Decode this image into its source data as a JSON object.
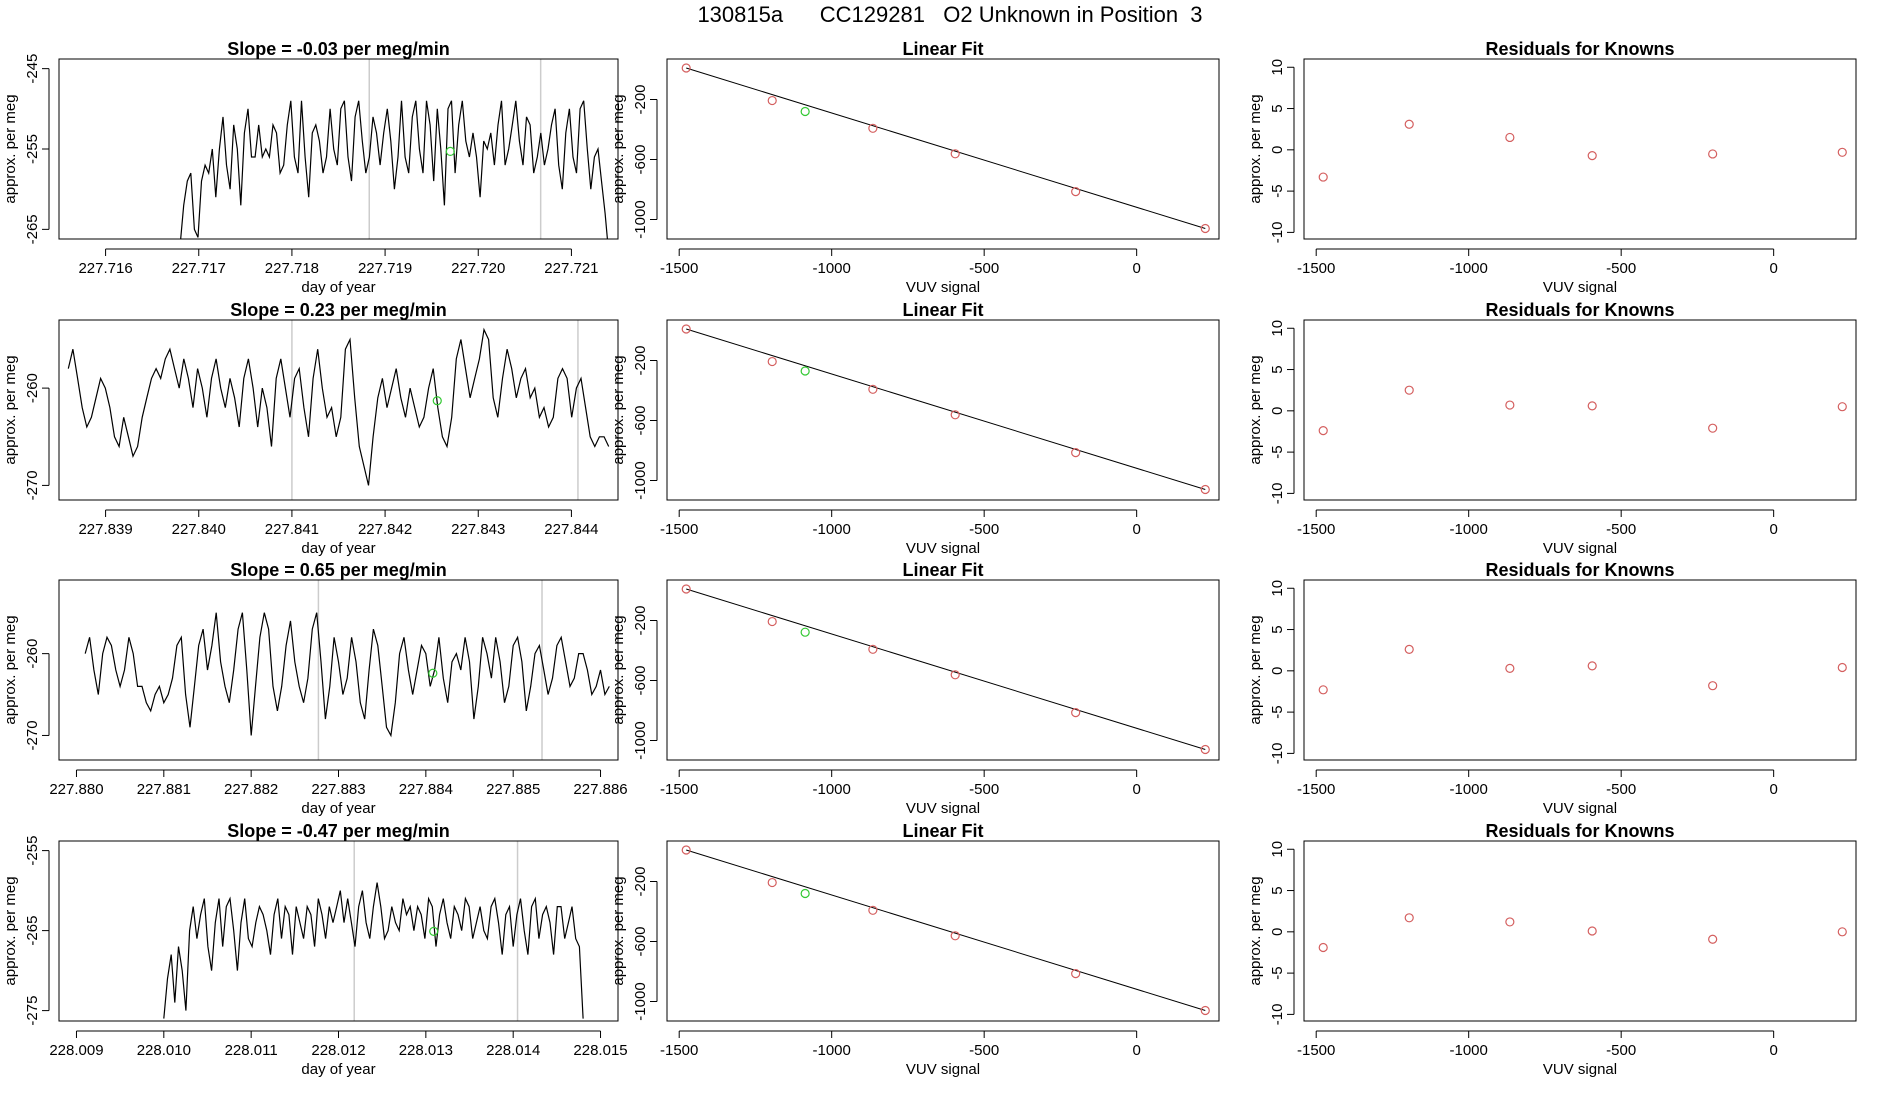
{
  "page_title": "130815a      CC129281   O2 Unknown in Position  3",
  "colors": {
    "axis": "#000000",
    "series": "#000000",
    "fit_line": "#000000",
    "known_points": "#d45f5f",
    "unknown_point": "#32c832",
    "marker_lines": "#cccccc"
  },
  "chart_data": [
    {
      "id": "r1-timeseries",
      "type": "line",
      "title": "Slope =  -0.03  per meg/min",
      "xlabel": "day of year",
      "ylabel": "approx. per meg",
      "xlim": [
        227.7155,
        227.7215
      ],
      "ylim": [
        -266.2,
        -243.8
      ],
      "xticks": [
        227.716,
        227.717,
        227.718,
        227.719,
        227.72,
        227.721
      ],
      "xtick_labels": [
        "227.716",
        "227.717",
        "227.718",
        "227.719",
        "227.720",
        "227.721"
      ],
      "yticks": [
        -245,
        -255,
        -265
      ],
      "ytick_labels": [
        "-245",
        "-255",
        "-265"
      ],
      "marker_lines_x": [
        227.71883,
        227.72067
      ],
      "series": {
        "x_start": 227.7168,
        "x_end": 227.7214,
        "y": [
          -267,
          -262,
          -259,
          -258,
          -265,
          -266,
          -259,
          -257,
          -258,
          -255,
          -261,
          -255,
          -251,
          -257,
          -260,
          -252,
          -255,
          -262,
          -253,
          -250,
          -256,
          -256,
          -252,
          -256,
          -255,
          -256,
          -252,
          -253,
          -258,
          -257,
          -252,
          -249,
          -256,
          -258,
          -249,
          -256,
          -261,
          -253,
          -252,
          -254,
          -258,
          -256,
          -250,
          -255,
          -257,
          -250,
          -249,
          -256,
          -259,
          -251,
          -249,
          -254,
          -258,
          -256,
          -251,
          -253,
          -257,
          -253,
          -250,
          -254,
          -260,
          -256,
          -249,
          -256,
          -258,
          -251,
          -249,
          -255,
          -258,
          -249,
          -252,
          -259,
          -250,
          -255,
          -262,
          -250,
          -249,
          -258,
          -252,
          -249,
          -254,
          -256,
          -253,
          -256,
          -261,
          -254,
          -255,
          -253,
          -257,
          -252,
          -249,
          -257,
          -255,
          -252,
          -249,
          -254,
          -257,
          -251,
          -252,
          -258,
          -256,
          -253,
          -257,
          -255,
          -252,
          -250,
          -257,
          -260,
          -253,
          -250,
          -256,
          -258,
          -250,
          -249,
          -255,
          -260,
          -256,
          -255,
          -259,
          -263,
          -268
        ]
      },
      "unknown_point": {
        "x": 227.7197,
        "y": -255.3
      }
    },
    {
      "id": "r1-fit",
      "type": "scatter",
      "title": "Linear Fit",
      "xlabel": "VUV signal",
      "ylabel": "approx. per meg",
      "xlim": [
        -1540,
        270
      ],
      "ylim": [
        -1130,
        70
      ],
      "xticks": [
        -1500,
        -1000,
        -500,
        0
      ],
      "xtick_labels": [
        "-1500",
        "-1000",
        "-500",
        "0"
      ],
      "yticks": [
        -200,
        -600,
        -1000
      ],
      "ytick_labels": [
        "-200",
        "-600",
        "-1000"
      ],
      "fit_line": [
        [
          -1477,
          10
        ],
        [
          225,
          -1060
        ]
      ],
      "known_points": {
        "x": [
          -1477,
          -1195,
          -865,
          -595,
          -200,
          225
        ],
        "y": [
          10,
          -207,
          -392,
          -562,
          -814,
          -1060
        ]
      },
      "unknown_point": {
        "x": -1087,
        "y": -280
      }
    },
    {
      "id": "r1-resid",
      "type": "scatter",
      "title": "Residuals for Knowns",
      "xlabel": "VUV signal",
      "ylabel": "approx. per meg",
      "xlim": [
        -1540,
        270
      ],
      "ylim": [
        -10.8,
        11
      ],
      "xticks": [
        -1500,
        -1000,
        -500,
        0
      ],
      "xtick_labels": [
        "-1500",
        "-1000",
        "-500",
        "0"
      ],
      "yticks": [
        10,
        5,
        0,
        -5,
        -10
      ],
      "ytick_labels": [
        "10",
        "5",
        "0",
        "-5",
        "-10"
      ],
      "known_points": {
        "x": [
          -1477,
          -1195,
          -865,
          -595,
          -200,
          225
        ],
        "y": [
          -3.3,
          3.1,
          1.5,
          -0.7,
          -0.5,
          -0.3
        ]
      }
    },
    {
      "id": "r2-timeseries",
      "type": "line",
      "title": "Slope =  0.23  per meg/min",
      "xlabel": "day of year",
      "ylabel": "approx. per meg",
      "xlim": [
        227.8385,
        227.8445
      ],
      "ylim": [
        -271.5,
        -253
      ],
      "xticks": [
        227.839,
        227.84,
        227.841,
        227.842,
        227.843,
        227.844
      ],
      "xtick_labels": [
        "227.839",
        "227.840",
        "227.841",
        "227.842",
        "227.843",
        "227.844"
      ],
      "yticks": [
        -260,
        -270
      ],
      "ytick_labels": [
        "-260",
        "-270"
      ],
      "marker_lines_x": [
        227.841,
        227.84407
      ],
      "series": {
        "x_start": 227.8386,
        "x_end": 227.8444,
        "y": [
          -258,
          -256,
          -259,
          -262,
          -264,
          -263,
          -261,
          -259,
          -260,
          -262,
          -265,
          -266,
          -263,
          -265,
          -267,
          -266,
          -263,
          -261,
          -259,
          -258,
          -259,
          -257,
          -256,
          -258,
          -260,
          -257,
          -259,
          -262,
          -258,
          -260,
          -263,
          -259,
          -257,
          -260,
          -262,
          -259,
          -261,
          -264,
          -259,
          -257,
          -260,
          -264,
          -260,
          -262,
          -266,
          -259,
          -257,
          -260,
          -263,
          -259,
          -258,
          -262,
          -265,
          -259,
          -256,
          -260,
          -263,
          -262,
          -265,
          -263,
          -256,
          -255,
          -261,
          -266,
          -268,
          -270,
          -265,
          -261,
          -259,
          -262,
          -260,
          -258,
          -261,
          -263,
          -260,
          -262,
          -264,
          -263,
          -260,
          -258,
          -262,
          -265,
          -266,
          -263,
          -257,
          -255,
          -258,
          -261,
          -259,
          -257,
          -254,
          -255,
          -261,
          -263,
          -259,
          -256,
          -258,
          -261,
          -259,
          -258,
          -261,
          -260,
          -263,
          -262,
          -264,
          -263,
          -259,
          -258,
          -259,
          -263,
          -260,
          -259,
          -262,
          -265,
          -266,
          -265,
          -265,
          -266
        ]
      },
      "unknown_point": {
        "x": 227.84256,
        "y": -261.3
      }
    },
    {
      "id": "r2-fit",
      "type": "scatter",
      "title": "Linear Fit",
      "xlabel": "VUV signal",
      "ylabel": "approx. per meg",
      "xlim": [
        -1540,
        270
      ],
      "ylim": [
        -1130,
        70
      ],
      "xticks": [
        -1500,
        -1000,
        -500,
        0
      ],
      "xtick_labels": [
        "-1500",
        "-1000",
        "-500",
        "0"
      ],
      "yticks": [
        -200,
        -600,
        -1000
      ],
      "ytick_labels": [
        "-200",
        "-600",
        "-1000"
      ],
      "fit_line": [
        [
          -1477,
          10
        ],
        [
          225,
          -1060
        ]
      ],
      "known_points": {
        "x": [
          -1477,
          -1195,
          -865,
          -595,
          -200,
          225
        ],
        "y": [
          10,
          -207,
          -392,
          -562,
          -814,
          -1060
        ]
      },
      "unknown_point": {
        "x": -1087,
        "y": -270
      }
    },
    {
      "id": "r2-resid",
      "type": "scatter",
      "title": "Residuals for Knowns",
      "xlabel": "VUV signal",
      "ylabel": "approx. per meg",
      "xlim": [
        -1540,
        270
      ],
      "ylim": [
        -10.8,
        11
      ],
      "xticks": [
        -1500,
        -1000,
        -500,
        0
      ],
      "xtick_labels": [
        "-1500",
        "-1000",
        "-500",
        "0"
      ],
      "yticks": [
        10,
        5,
        0,
        -5,
        -10
      ],
      "ytick_labels": [
        "10",
        "5",
        "0",
        "-5",
        "-10"
      ],
      "known_points": {
        "x": [
          -1477,
          -1195,
          -865,
          -595,
          -200,
          225
        ],
        "y": [
          -2.4,
          2.5,
          0.7,
          0.6,
          -2.1,
          0.5
        ]
      }
    },
    {
      "id": "r3-timeseries",
      "type": "line",
      "title": "Slope =  0.65  per meg/min",
      "xlabel": "day of year",
      "ylabel": "approx. per meg",
      "xlim": [
        227.8798,
        227.8862
      ],
      "ylim": [
        -273,
        -251
      ],
      "xticks": [
        227.88,
        227.881,
        227.882,
        227.883,
        227.884,
        227.885,
        227.886
      ],
      "xtick_labels": [
        "227.880",
        "227.881",
        "227.882",
        "227.883",
        "227.884",
        "227.885",
        "227.886"
      ],
      "yticks": [
        -260,
        -270
      ],
      "ytick_labels": [
        "-260",
        "-270"
      ],
      "marker_lines_x": [
        227.88277,
        227.88533
      ],
      "series": {
        "x_start": 227.8801,
        "x_end": 227.8861,
        "y": [
          -260,
          -258,
          -262,
          -265,
          -260,
          -258,
          -259,
          -262,
          -264,
          -262,
          -258,
          -260,
          -264,
          -264,
          -266,
          -267,
          -265,
          -264,
          -266,
          -265,
          -263,
          -259,
          -258,
          -265,
          -269,
          -264,
          -259,
          -257,
          -262,
          -259,
          -255,
          -261,
          -264,
          -266,
          -262,
          -257,
          -255,
          -262,
          -270,
          -264,
          -258,
          -255,
          -257,
          -264,
          -267,
          -264,
          -259,
          -256,
          -261,
          -264,
          -266,
          -263,
          -257,
          -255,
          -261,
          -268,
          -264,
          -258,
          -261,
          -265,
          -263,
          -258,
          -261,
          -266,
          -268,
          -262,
          -257,
          -259,
          -264,
          -269,
          -270,
          -266,
          -260,
          -258,
          -262,
          -265,
          -262,
          -259,
          -260,
          -264,
          -262,
          -258,
          -263,
          -266,
          -261,
          -260,
          -262,
          -258,
          -261,
          -268,
          -264,
          -258,
          -260,
          -263,
          -258,
          -261,
          -266,
          -264,
          -259,
          -258,
          -261,
          -267,
          -264,
          -260,
          -259,
          -262,
          -265,
          -263,
          -259,
          -258,
          -261,
          -264,
          -263,
          -260,
          -260,
          -262,
          -265,
          -264,
          -262,
          -265,
          -264
        ]
      },
      "unknown_point": {
        "x": 227.88408,
        "y": -262.4
      }
    },
    {
      "id": "r3-fit",
      "type": "scatter",
      "title": "Linear Fit",
      "xlabel": "VUV signal",
      "ylabel": "approx. per meg",
      "xlim": [
        -1540,
        270
      ],
      "ylim": [
        -1130,
        70
      ],
      "xticks": [
        -1500,
        -1000,
        -500,
        0
      ],
      "xtick_labels": [
        "-1500",
        "-1000",
        "-500",
        "0"
      ],
      "yticks": [
        -200,
        -600,
        -1000
      ],
      "ytick_labels": [
        "-200",
        "-600",
        "-1000"
      ],
      "fit_line": [
        [
          -1477,
          10
        ],
        [
          225,
          -1060
        ]
      ],
      "known_points": {
        "x": [
          -1477,
          -1195,
          -865,
          -595,
          -200,
          225
        ],
        "y": [
          10,
          -207,
          -392,
          -562,
          -814,
          -1060
        ]
      },
      "unknown_point": {
        "x": -1087,
        "y": -278
      }
    },
    {
      "id": "r3-resid",
      "type": "scatter",
      "title": "Residuals for Knowns",
      "xlabel": "VUV signal",
      "ylabel": "approx. per meg",
      "xlim": [
        -1540,
        270
      ],
      "ylim": [
        -10.8,
        11
      ],
      "xticks": [
        -1500,
        -1000,
        -500,
        0
      ],
      "xtick_labels": [
        "-1500",
        "-1000",
        "-500",
        "0"
      ],
      "yticks": [
        10,
        5,
        0,
        -5,
        -10
      ],
      "ytick_labels": [
        "10",
        "5",
        "0",
        "-5",
        "-10"
      ],
      "known_points": {
        "x": [
          -1477,
          -1195,
          -865,
          -595,
          -200,
          225
        ],
        "y": [
          -2.3,
          2.6,
          0.3,
          0.6,
          -1.8,
          0.4
        ]
      }
    },
    {
      "id": "r4-timeseries",
      "type": "line",
      "title": "Slope =  -0.47  per meg/min",
      "xlabel": "day of year",
      "ylabel": "approx. per meg",
      "xlim": [
        228.0088,
        228.0152
      ],
      "ylim": [
        -276.3,
        -253.8
      ],
      "xticks": [
        228.009,
        228.01,
        228.011,
        228.012,
        228.013,
        228.014,
        228.015
      ],
      "xtick_labels": [
        "228.009",
        "228.010",
        "228.011",
        "228.012",
        "228.013",
        "228.014",
        "228.015"
      ],
      "yticks": [
        -255,
        -265,
        -275
      ],
      "ytick_labels": [
        "-255",
        "-265",
        "-275"
      ],
      "marker_lines_x": [
        228.01218,
        228.01405
      ],
      "series": {
        "x_start": 228.01,
        "x_end": 228.0148,
        "y": [
          -276,
          -271,
          -268,
          -274,
          -267,
          -270,
          -275,
          -265,
          -262,
          -266,
          -263,
          -261,
          -267,
          -270,
          -264,
          -261,
          -267,
          -262,
          -261,
          -265,
          -270,
          -264,
          -261,
          -266,
          -267,
          -264,
          -262,
          -263,
          -265,
          -268,
          -263,
          -261,
          -266,
          -262,
          -263,
          -268,
          -262,
          -264,
          -266,
          -262,
          -263,
          -267,
          -261,
          -263,
          -266,
          -262,
          -264,
          -262,
          -260,
          -264,
          -261,
          -264,
          -267,
          -262,
          -260,
          -264,
          -266,
          -262,
          -259,
          -262,
          -266,
          -265,
          -262,
          -264,
          -265,
          -261,
          -263,
          -262,
          -265,
          -262,
          -263,
          -266,
          -261,
          -262,
          -267,
          -263,
          -261,
          -264,
          -266,
          -262,
          -263,
          -265,
          -261,
          -262,
          -266,
          -264,
          -262,
          -265,
          -266,
          -262,
          -261,
          -264,
          -268,
          -263,
          -262,
          -267,
          -263,
          -261,
          -265,
          -268,
          -262,
          -261,
          -266,
          -263,
          -262,
          -264,
          -268,
          -262,
          -262,
          -266,
          -264,
          -262,
          -266,
          -267,
          -276
        ]
      },
      "unknown_point": {
        "x": 228.01309,
        "y": -265.1
      }
    },
    {
      "id": "r4-fit",
      "type": "scatter",
      "title": "Linear Fit",
      "xlabel": "VUV signal",
      "ylabel": "approx. per meg",
      "xlim": [
        -1540,
        270
      ],
      "ylim": [
        -1130,
        70
      ],
      "xticks": [
        -1500,
        -1000,
        -500,
        0
      ],
      "xtick_labels": [
        "-1500",
        "-1000",
        "-500",
        "0"
      ],
      "yticks": [
        -200,
        -600,
        -1000
      ],
      "ytick_labels": [
        "-200",
        "-600",
        "-1000"
      ],
      "fit_line": [
        [
          -1477,
          10
        ],
        [
          225,
          -1060
        ]
      ],
      "known_points": {
        "x": [
          -1477,
          -1195,
          -865,
          -595,
          -200,
          225
        ],
        "y": [
          10,
          -207,
          -392,
          -562,
          -814,
          -1060
        ]
      },
      "unknown_point": {
        "x": -1087,
        "y": -280
      }
    },
    {
      "id": "r4-resid",
      "type": "scatter",
      "title": "Residuals for Knowns",
      "xlabel": "VUV signal",
      "ylabel": "approx. per meg",
      "xlim": [
        -1540,
        270
      ],
      "ylim": [
        -10.8,
        11
      ],
      "xticks": [
        -1500,
        -1000,
        -500,
        0
      ],
      "xtick_labels": [
        "-1500",
        "-1000",
        "-500",
        "0"
      ],
      "yticks": [
        10,
        5,
        0,
        -5,
        -10
      ],
      "ytick_labels": [
        "10",
        "5",
        "0",
        "-5",
        "-10"
      ],
      "known_points": {
        "x": [
          -1477,
          -1195,
          -865,
          -595,
          -200,
          225
        ],
        "y": [
          -1.9,
          1.7,
          1.2,
          0.1,
          -0.9,
          0.0
        ]
      }
    }
  ]
}
